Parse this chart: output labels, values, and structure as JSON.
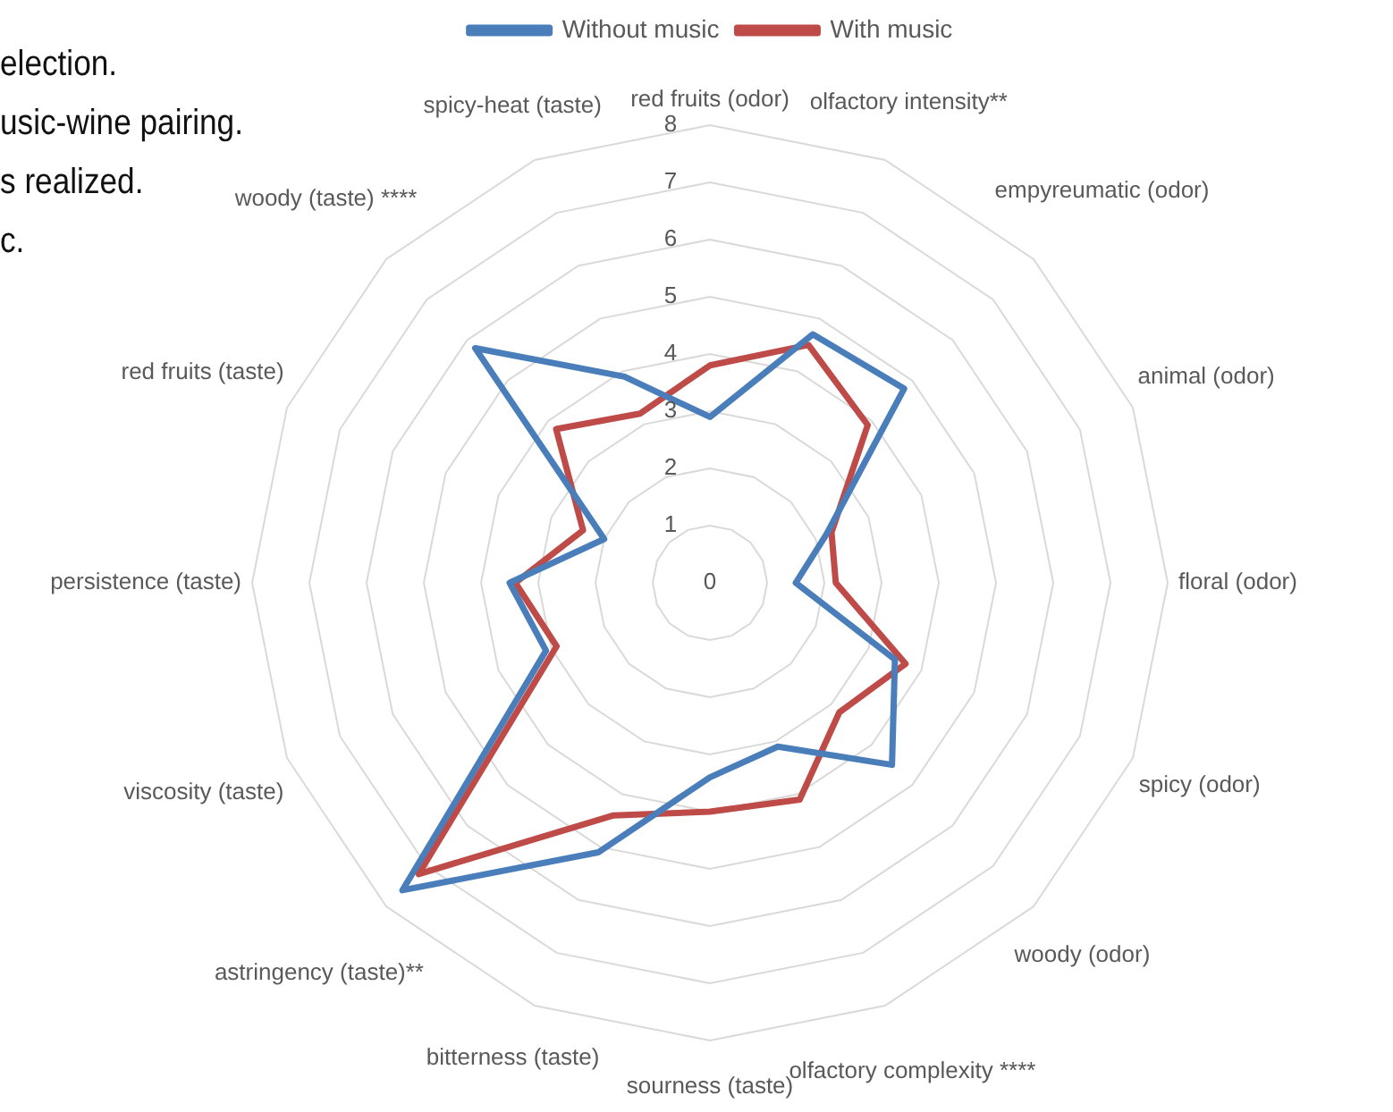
{
  "chart_data": {
    "type": "radar",
    "categories": [
      "red fruits (odor)",
      "olfactory intensity**",
      "empyreumatic (odor)",
      "animal (odor)",
      "floral (odor)",
      "spicy (odor)",
      "woody (odor)",
      "olfactory complexity ****",
      "sourness (taste)",
      "bitterness (taste)",
      "astringency (taste)**",
      "viscosity (taste)",
      "persistence (taste)",
      "red fruits (taste)",
      "woody (taste) ****",
      "spicy-heat (taste)"
    ],
    "series": [
      {
        "name": "Without music",
        "color": "#4a7ebb",
        "values": [
          2.9,
          4.7,
          4.8,
          2.2,
          1.5,
          3.5,
          4.5,
          3.1,
          3.4,
          5.1,
          7.6,
          3.1,
          3.5,
          2.0,
          5.8,
          3.9
        ]
      },
      {
        "name": "With music",
        "color": "#be4b48",
        "values": [
          3.8,
          4.5,
          3.9,
          2.3,
          2.2,
          3.7,
          3.2,
          4.1,
          4.0,
          4.4,
          7.2,
          2.9,
          3.4,
          2.4,
          3.8,
          3.2
        ]
      }
    ],
    "ylim": [
      0,
      8
    ],
    "yticks": [
      0,
      1,
      2,
      3,
      4,
      5,
      6,
      7,
      8
    ],
    "grid": true,
    "legend": "top",
    "marker": "none",
    "line_style": "solid",
    "annotations": [
      "election.",
      "usic-wine pairing.",
      "s realized.",
      "c."
    ]
  }
}
